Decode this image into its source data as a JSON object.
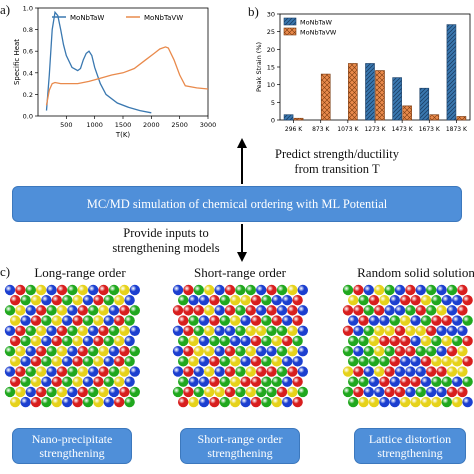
{
  "panels": {
    "a": "a)",
    "b": "b)",
    "c": "c)"
  },
  "chart_data": [
    {
      "type": "line",
      "ylabel": "Specific Heat",
      "xlabel": "T(K)",
      "xticks": [
        "500",
        "1000",
        "1500",
        "2000",
        "2500",
        "3000"
      ],
      "xlim": [
        0,
        3000
      ],
      "ylim": [
        0,
        1.0
      ],
      "yticks": [
        "0.0",
        "0.2",
        "0.4",
        "0.6",
        "0.8",
        "1.0"
      ],
      "legend_position": "top",
      "grid": false,
      "series": [
        {
          "name": "MoNbTaW",
          "color": "#3a78b0",
          "x": [
            150,
            200,
            250,
            300,
            350,
            400,
            450,
            500,
            600,
            700,
            750,
            800,
            850,
            900,
            950,
            1000,
            1100,
            1200,
            1400,
            1600,
            1800,
            2000
          ],
          "y": [
            0.05,
            0.38,
            0.8,
            0.96,
            0.93,
            0.8,
            0.66,
            0.56,
            0.45,
            0.42,
            0.44,
            0.52,
            0.58,
            0.6,
            0.56,
            0.45,
            0.3,
            0.2,
            0.12,
            0.08,
            0.05,
            0.03
          ]
        },
        {
          "name": "MoNbTaVW",
          "color": "#e98a4c",
          "x": [
            150,
            200,
            250,
            300,
            400,
            500,
            700,
            900,
            1100,
            1300,
            1500,
            1700,
            1900,
            2050,
            2150,
            2250,
            2300,
            2400,
            2500,
            2600,
            2800,
            3000
          ],
          "y": [
            0.1,
            0.24,
            0.3,
            0.31,
            0.3,
            0.3,
            0.3,
            0.32,
            0.35,
            0.38,
            0.4,
            0.44,
            0.52,
            0.58,
            0.62,
            0.64,
            0.63,
            0.52,
            0.38,
            0.28,
            0.26,
            0.25
          ]
        }
      ]
    },
    {
      "type": "bar",
      "ylabel": "Peak Strain (%)",
      "categories": [
        "296 K",
        "873 K",
        "1073 K",
        "1273 K",
        "1473 K",
        "1673 K",
        "1873 K"
      ],
      "ylim": [
        0,
        30
      ],
      "yticks": [
        "0",
        "5",
        "10",
        "15",
        "20",
        "25",
        "30"
      ],
      "legend_position": "top-left",
      "series": [
        {
          "name": "MoNbTaW",
          "color": "#3a78b0",
          "hatch": "diagonal",
          "values": [
            1.5,
            0,
            0,
            16,
            12,
            9,
            27
          ]
        },
        {
          "name": "MoNbTaVW",
          "color": "#e98a4c",
          "hatch": "cross",
          "values": [
            0.5,
            13,
            16,
            14,
            4,
            1.5,
            1
          ]
        }
      ]
    }
  ],
  "arrows": {
    "up_caption_line1": "Predict strength/ductility",
    "up_caption_line2": "from transition T",
    "down_caption_line1": "Provide inputs to",
    "down_caption_line2": "strengthening models"
  },
  "banner": "MC/MD simulation of chemical ordering with ML Potential",
  "orders": [
    {
      "title": "Long-range order",
      "mechanism_line1": "Nano-precipitate",
      "mechanism_line2": "strengthening",
      "pattern": "ordered"
    },
    {
      "title": "Short-range order",
      "mechanism_line1": "Short-range order",
      "mechanism_line2": "strengthening",
      "pattern": "partial"
    },
    {
      "title": "Random solid solution",
      "mechanism_line1": "Lattice distortion",
      "mechanism_line2": "strengthening",
      "pattern": "random"
    }
  ],
  "atom_colors": [
    "#1c3fd0",
    "#d81e1e",
    "#20a81e",
    "#e6d21a"
  ]
}
